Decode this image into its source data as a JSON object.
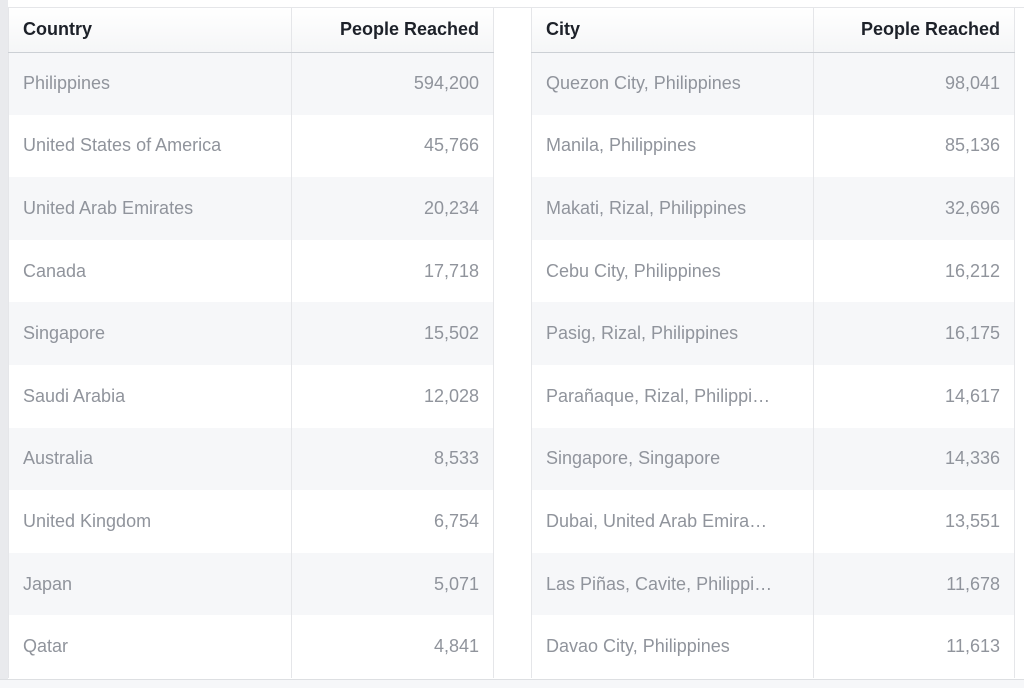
{
  "countries": {
    "headers": [
      "Country",
      "People Reached"
    ],
    "rows": [
      [
        "Philippines",
        "594,200"
      ],
      [
        "United States of America",
        "45,766"
      ],
      [
        "United Arab Emirates",
        "20,234"
      ],
      [
        "Canada",
        "17,718"
      ],
      [
        "Singapore",
        "15,502"
      ],
      [
        "Saudi Arabia",
        "12,028"
      ],
      [
        "Australia",
        "8,533"
      ],
      [
        "United Kingdom",
        "6,754"
      ],
      [
        "Japan",
        "5,071"
      ],
      [
        "Qatar",
        "4,841"
      ]
    ]
  },
  "cities": {
    "headers": [
      "City",
      "People Reached"
    ],
    "rows": [
      [
        "Quezon City, Philippines",
        "98,041"
      ],
      [
        "Manila, Philippines",
        "85,136"
      ],
      [
        "Makati, Rizal, Philippines",
        "32,696"
      ],
      [
        "Cebu City, Philippines",
        "16,212"
      ],
      [
        "Pasig, Rizal, Philippines",
        "16,175"
      ],
      [
        "Parañaque, Rizal, Philippi…",
        "14,617"
      ],
      [
        "Singapore, Singapore",
        "14,336"
      ],
      [
        "Dubai, United Arab Emira…",
        "13,551"
      ],
      [
        "Las Piñas, Cavite, Philippi…",
        "11,678"
      ],
      [
        "Davao City, Philippines",
        "11,613"
      ]
    ]
  }
}
